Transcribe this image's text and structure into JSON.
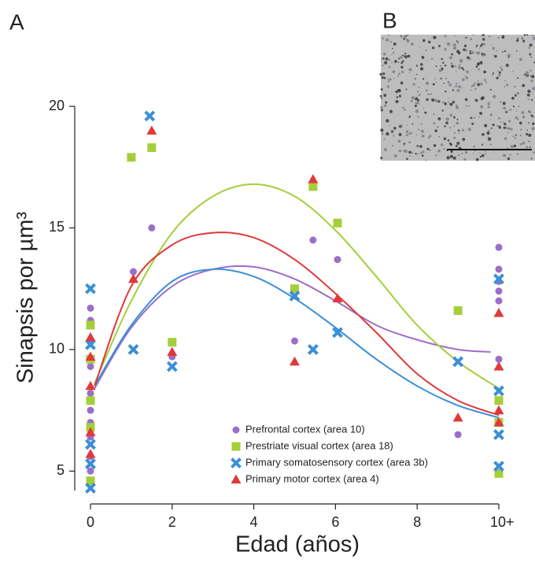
{
  "chart_data": {
    "type": "scatter",
    "panel_labels": [
      "A",
      "B"
    ],
    "xlabel": "Edad (años)",
    "ylabel": "Sinapsis por µm³",
    "xlim": [
      0,
      10
    ],
    "ylim": [
      4.2,
      20
    ],
    "xticks": [
      0,
      2,
      4,
      6,
      8,
      {
        "value": 10,
        "label": "10+"
      }
    ],
    "yticks": [
      5,
      10,
      15,
      20
    ],
    "legend_position": "lower-right",
    "series": [
      {
        "name": "Prefrontal cortex (area 10)",
        "color": "#9b6fc9",
        "marker": "circle",
        "x": [
          0,
          0,
          0,
          0,
          0,
          0,
          0,
          0,
          0,
          0,
          1.05,
          1.5,
          2,
          5,
          5.45,
          6.05,
          9,
          10,
          10,
          10,
          10,
          10,
          10
        ],
        "values": [
          11.7,
          11.2,
          10.3,
          9.3,
          8.2,
          7.5,
          7.0,
          6.4,
          5.6,
          5.0,
          13.2,
          15.0,
          9.7,
          10.35,
          14.5,
          13.7,
          6.5,
          14.2,
          13.3,
          12.8,
          12.4,
          12.0,
          9.6
        ],
        "fit": {
          "x": [
            0.1,
            1,
            2,
            3,
            4,
            5,
            6,
            7,
            8,
            9,
            9.8
          ],
          "values": [
            8.4,
            10.9,
            12.6,
            13.3,
            13.4,
            12.9,
            12.0,
            11.0,
            10.4,
            10.0,
            9.9
          ]
        }
      },
      {
        "name": "Prestriate visual cortex (area 18)",
        "color": "#a5cf3a",
        "marker": "square",
        "x": [
          0,
          0,
          0,
          0,
          0,
          1,
          1.5,
          2,
          5,
          5.45,
          6.05,
          9,
          10,
          10,
          10
        ],
        "values": [
          11.0,
          9.6,
          7.9,
          6.8,
          4.6,
          17.9,
          18.3,
          10.3,
          12.5,
          16.7,
          15.2,
          11.6,
          7.9,
          7.0,
          4.9
        ],
        "fit": {
          "x": [
            0.1,
            1,
            2,
            3,
            4,
            5,
            6,
            7,
            8,
            9,
            10
          ],
          "values": [
            8.6,
            12.0,
            14.8,
            16.3,
            16.8,
            16.3,
            14.9,
            13.0,
            11.0,
            9.5,
            8.4
          ]
        }
      },
      {
        "name": "Primary somatosensory cortex (area 3b)",
        "color": "#3b8fd6",
        "marker": "cross",
        "x": [
          0,
          0,
          0,
          0,
          0,
          1.05,
          1.45,
          2,
          5,
          5.45,
          6.05,
          9,
          10,
          10,
          10,
          10
        ],
        "values": [
          12.5,
          10.2,
          6.1,
          5.3,
          4.3,
          10.0,
          19.6,
          9.3,
          12.2,
          10.0,
          10.7,
          9.5,
          12.9,
          8.3,
          6.5,
          5.2
        ],
        "fit": {
          "x": [
            0.1,
            1,
            2,
            3,
            4,
            5,
            6,
            7,
            8,
            9,
            10
          ],
          "values": [
            8.5,
            11.0,
            12.8,
            13.3,
            13.0,
            12.1,
            10.9,
            9.6,
            8.5,
            7.7,
            7.2
          ]
        }
      },
      {
        "name": "Primary motor cortex (area 4)",
        "color": "#e0393a",
        "marker": "triangle",
        "x": [
          0,
          0,
          0,
          0,
          0,
          1.05,
          1.5,
          2,
          5,
          5.45,
          6.05,
          9,
          10,
          10,
          10,
          10
        ],
        "values": [
          10.5,
          9.7,
          8.5,
          6.6,
          5.7,
          12.9,
          19.0,
          9.9,
          9.5,
          17.0,
          12.1,
          7.2,
          11.5,
          9.3,
          7.5,
          7.0
        ],
        "fit": {
          "x": [
            0.1,
            1,
            2,
            3,
            4,
            5,
            6,
            7,
            8,
            9,
            10
          ],
          "values": [
            8.5,
            12.6,
            14.3,
            14.8,
            14.6,
            13.7,
            12.3,
            10.7,
            9.0,
            7.9,
            7.3
          ]
        }
      }
    ]
  }
}
